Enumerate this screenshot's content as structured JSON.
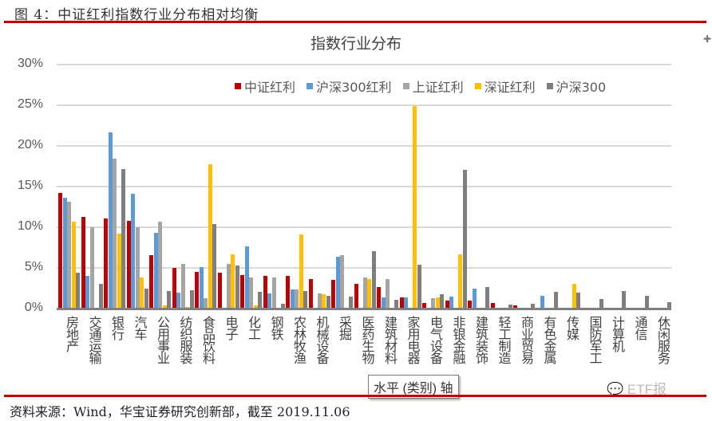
{
  "figure": {
    "title": "图 4：中证红利指数行业分布相对均衡"
  },
  "source": "资料来源：Wind，华宝证券研究创新部，截至 2019.11.06",
  "tooltip": "水平 (类别) 轴",
  "watermark": "ETF报",
  "chart_data": {
    "type": "bar",
    "title": "指数行业分布",
    "xlabel": "",
    "ylabel": "",
    "ylim": [
      0,
      30
    ],
    "yticks": [
      "0%",
      "5%",
      "10%",
      "15%",
      "20%",
      "25%",
      "30%"
    ],
    "grid": true,
    "legend_position": "top-right",
    "categories": [
      "房地产",
      "交通运输",
      "银行",
      "汽车",
      "公用事业",
      "纺织服装",
      "食品饮料",
      "电子",
      "化工",
      "钢铁",
      "农林牧渔",
      "机械设备",
      "采掘",
      "医药生物",
      "建筑材料",
      "家用电器",
      "电气设备",
      "非银金融",
      "建筑装饰",
      "轻工制造",
      "商业贸易",
      "有色金属",
      "传媒",
      "国防军工",
      "计算机",
      "通信",
      "休闲服务"
    ],
    "series": [
      {
        "name": "中证红利",
        "color": "#c00000",
        "values": [
          14.2,
          11.3,
          11.1,
          10.8,
          6.6,
          5.0,
          4.5,
          4.4,
          4.1,
          4.0,
          4.0,
          3.6,
          3.5,
          3.0,
          2.6,
          1.4,
          0.7,
          1.0,
          1.0,
          0.7,
          0.4,
          0,
          0,
          0,
          0,
          0,
          0
        ]
      },
      {
        "name": "沪深300红利",
        "color": "#5b9bd5",
        "values": [
          13.6,
          4.0,
          21.7,
          14.1,
          9.3,
          2.0,
          5.1,
          0,
          7.6,
          1.9,
          2.4,
          0,
          6.4,
          0,
          1.4,
          1.4,
          0,
          1.5,
          2.5,
          0,
          0,
          1.6,
          0,
          0,
          0,
          0,
          0
        ]
      },
      {
        "name": "上证红利",
        "color": "#a5a5a5",
        "values": [
          13.1,
          10.0,
          18.4,
          10.0,
          10.7,
          5.5,
          1.3,
          5.5,
          3.8,
          3.8,
          2.4,
          1.9,
          6.6,
          3.8,
          3.6,
          0,
          1.3,
          0,
          0,
          0,
          0,
          0,
          0,
          0,
          0,
          0,
          0
        ]
      },
      {
        "name": "深证红利",
        "color": "#ffc000",
        "values": [
          10.7,
          0,
          9.2,
          3.8,
          0.4,
          0.2,
          17.7,
          6.7,
          0.4,
          0,
          9.1,
          1.8,
          0,
          3.6,
          0,
          24.9,
          1.4,
          6.7,
          0,
          0,
          0,
          0,
          3.0,
          0,
          0,
          0,
          0
        ]
      },
      {
        "name": "沪深300",
        "color": "#7f7f7f",
        "values": [
          4.4,
          3.0,
          17.2,
          2.5,
          2.2,
          2.3,
          10.4,
          5.3,
          2.1,
          0.6,
          2.2,
          1.6,
          1.5,
          7.1,
          1.1,
          5.4,
          1.8,
          17.1,
          2.6,
          0.5,
          0.6,
          2.1,
          2.0,
          1.2,
          2.2,
          1.6,
          0.8
        ]
      }
    ]
  }
}
